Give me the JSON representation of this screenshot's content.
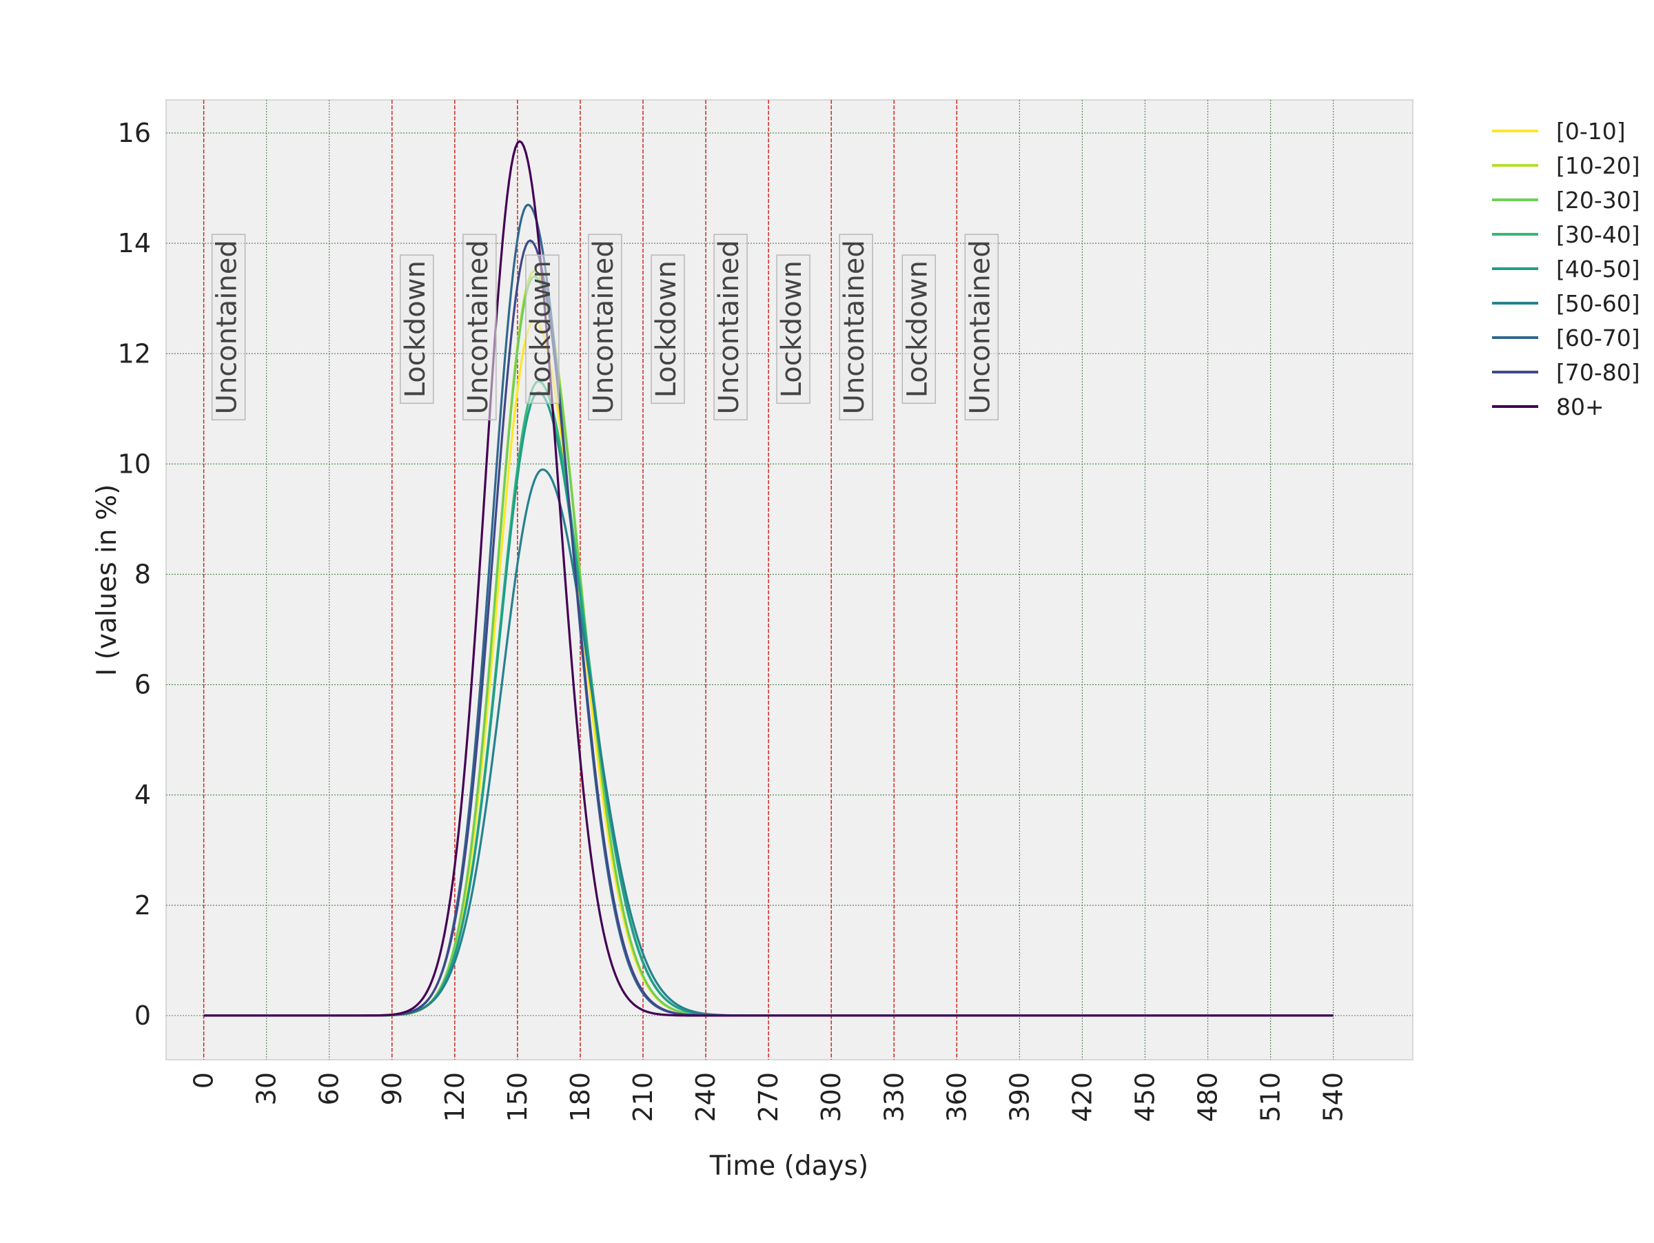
{
  "chart_data": {
    "type": "line",
    "title": "",
    "xlabel": "Time (days)",
    "ylabel": "I (values in %)",
    "xlim": [
      -18,
      578
    ],
    "ylim": [
      -0.8,
      16.6
    ],
    "xticks": [
      0,
      30,
      60,
      90,
      120,
      150,
      180,
      210,
      240,
      270,
      300,
      330,
      360,
      390,
      420,
      450,
      480,
      510,
      540
    ],
    "yticks": [
      0,
      2,
      4,
      6,
      8,
      10,
      12,
      14,
      16
    ],
    "xtick_rotation": "vertical",
    "grid": true,
    "legend_position": "outside right, top",
    "background_color": "#f0f0f0",
    "grid_color": "#5a8a5a",
    "phase_line_color": "#dd2222",
    "phase_boundaries": [
      0,
      90,
      120,
      150,
      180,
      210,
      240,
      270,
      300,
      330,
      360
    ],
    "phases": [
      {
        "label": "Uncontained",
        "x": 0
      },
      {
        "label": "Lockdown",
        "x": 90
      },
      {
        "label": "Uncontained",
        "x": 120
      },
      {
        "label": "Lockdown",
        "x": 150
      },
      {
        "label": "Uncontained",
        "x": 180
      },
      {
        "label": "Lockdown",
        "x": 210
      },
      {
        "label": "Uncontained",
        "x": 240
      },
      {
        "label": "Lockdown",
        "x": 270
      },
      {
        "label": "Uncontained",
        "x": 300
      },
      {
        "label": "Lockdown",
        "x": 330
      },
      {
        "label": "Uncontained",
        "x": 360
      }
    ],
    "x_range": [
      0,
      540
    ],
    "series": [
      {
        "name": "[0-10]",
        "color": "#fde725",
        "peak_day": 158,
        "peak_value": 12.6,
        "rise_width": 17.5,
        "fall_width": 21.5
      },
      {
        "name": "[10-20]",
        "color": "#b5de2b",
        "peak_day": 158,
        "peak_value": 13.5,
        "rise_width": 17.5,
        "fall_width": 21.5
      },
      {
        "name": "[20-30]",
        "color": "#6ece58",
        "peak_day": 158,
        "peak_value": 13.4,
        "rise_width": 17.5,
        "fall_width": 21.5
      },
      {
        "name": "[30-40]",
        "color": "#35b779",
        "peak_day": 160,
        "peak_value": 11.5,
        "rise_width": 18.5,
        "fall_width": 22.5
      },
      {
        "name": "[40-50]",
        "color": "#1f9e89",
        "peak_day": 160,
        "peak_value": 11.3,
        "rise_width": 18.5,
        "fall_width": 22.5
      },
      {
        "name": "[50-60]",
        "color": "#26828e",
        "peak_day": 162,
        "peak_value": 9.9,
        "rise_width": 19.5,
        "fall_width": 23.0
      },
      {
        "name": "[60-70]",
        "color": "#31688e",
        "peak_day": 155,
        "peak_value": 14.7,
        "rise_width": 17.0,
        "fall_width": 20.5
      },
      {
        "name": "[70-80]",
        "color": "#3e4989",
        "peak_day": 156,
        "peak_value": 14.05,
        "rise_width": 17.5,
        "fall_width": 20.5
      },
      {
        "name": "80+",
        "color": "#440154",
        "peak_day": 151,
        "peak_value": 15.85,
        "rise_width": 16.5,
        "fall_width": 18.5
      }
    ]
  }
}
